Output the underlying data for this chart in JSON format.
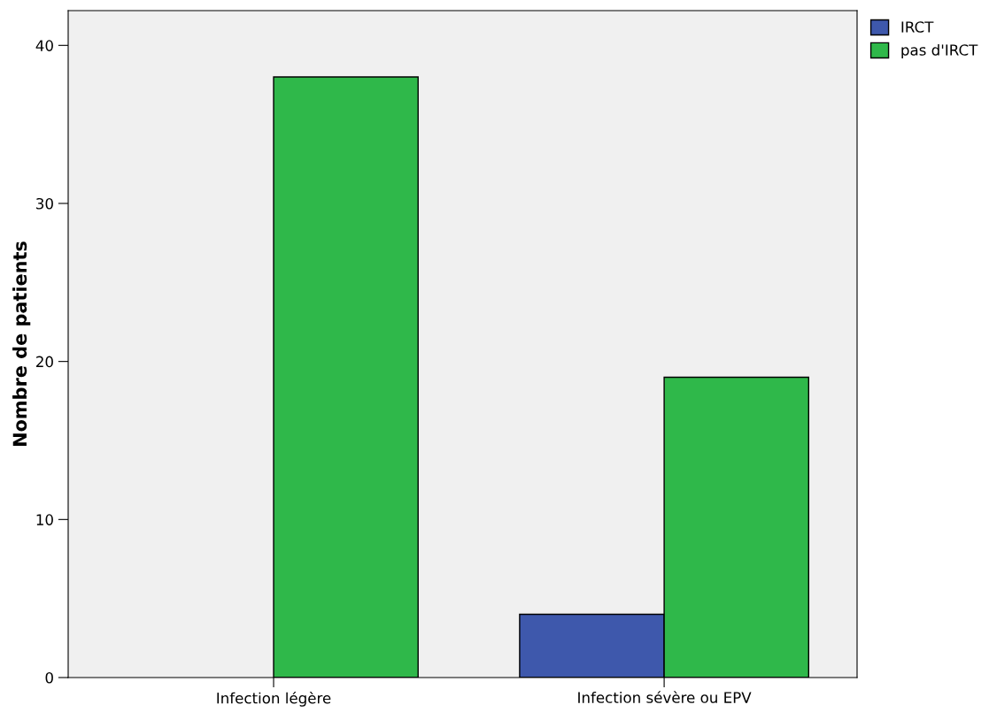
{
  "chart_data": {
    "type": "bar",
    "ylabel": "Nombre de patients",
    "categories": [
      "Infection légère",
      "Infection sévère ou EPV"
    ],
    "series": [
      {
        "name": "IRCT",
        "color": "#3e58ac",
        "values": [
          0,
          4
        ]
      },
      {
        "name": "pas d'IRCT",
        "color": "#2fb84a",
        "values": [
          38,
          19
        ]
      }
    ],
    "ylim": [
      0,
      42.2
    ],
    "yticks": [
      0,
      10,
      20,
      30,
      40
    ],
    "grid": false,
    "legend": "top right"
  }
}
